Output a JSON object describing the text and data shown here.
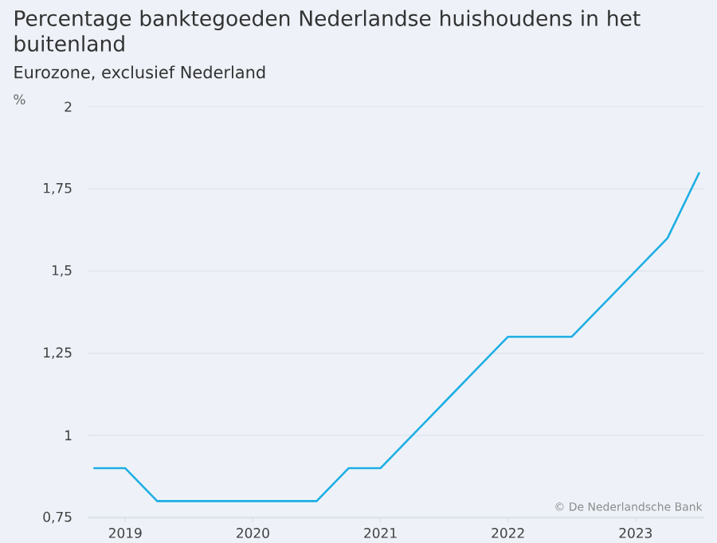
{
  "chart_data": {
    "type": "line",
    "title": "Percentage banktegoeden Nederlandse huishoudens in het buitenland",
    "subtitle": "Eurozone, exclusief Nederland",
    "ylabel": "%",
    "x": [
      "2018-10",
      "2019-01",
      "2019-04",
      "2019-07",
      "2019-10",
      "2020-01",
      "2020-04",
      "2020-07",
      "2020-10",
      "2021-01",
      "2021-04",
      "2021-07",
      "2021-10",
      "2022-01",
      "2022-04",
      "2022-07",
      "2022-10",
      "2023-01",
      "2023-04",
      "2023-07"
    ],
    "series": [
      {
        "color": "#1eaee4",
        "values": [
          0.9,
          0.9,
          0.8,
          0.8,
          0.8,
          0.8,
          0.8,
          0.8,
          0.9,
          0.9,
          1.0,
          1.1,
          1.2,
          1.3,
          1.3,
          1.3,
          1.4,
          1.5,
          1.6,
          1.8
        ]
      }
    ],
    "xlim": [
      "2018-09-15",
      "2023-07-15"
    ],
    "xticks": [
      "2019",
      "2020",
      "2021",
      "2022",
      "2023"
    ],
    "ylim": [
      0.75,
      2
    ],
    "yticks": [
      {
        "value": 0.75,
        "label": "0,75"
      },
      {
        "value": 1,
        "label": "1"
      },
      {
        "value": 1.25,
        "label": "1,25"
      },
      {
        "value": 1.5,
        "label": "1,5"
      },
      {
        "value": 1.75,
        "label": "1,75"
      },
      {
        "value": 2,
        "label": "2"
      }
    ],
    "grid": "y",
    "marker": "none",
    "line_style": "solid",
    "annotations": [
      "© De Nederlandsche Bank"
    ]
  }
}
